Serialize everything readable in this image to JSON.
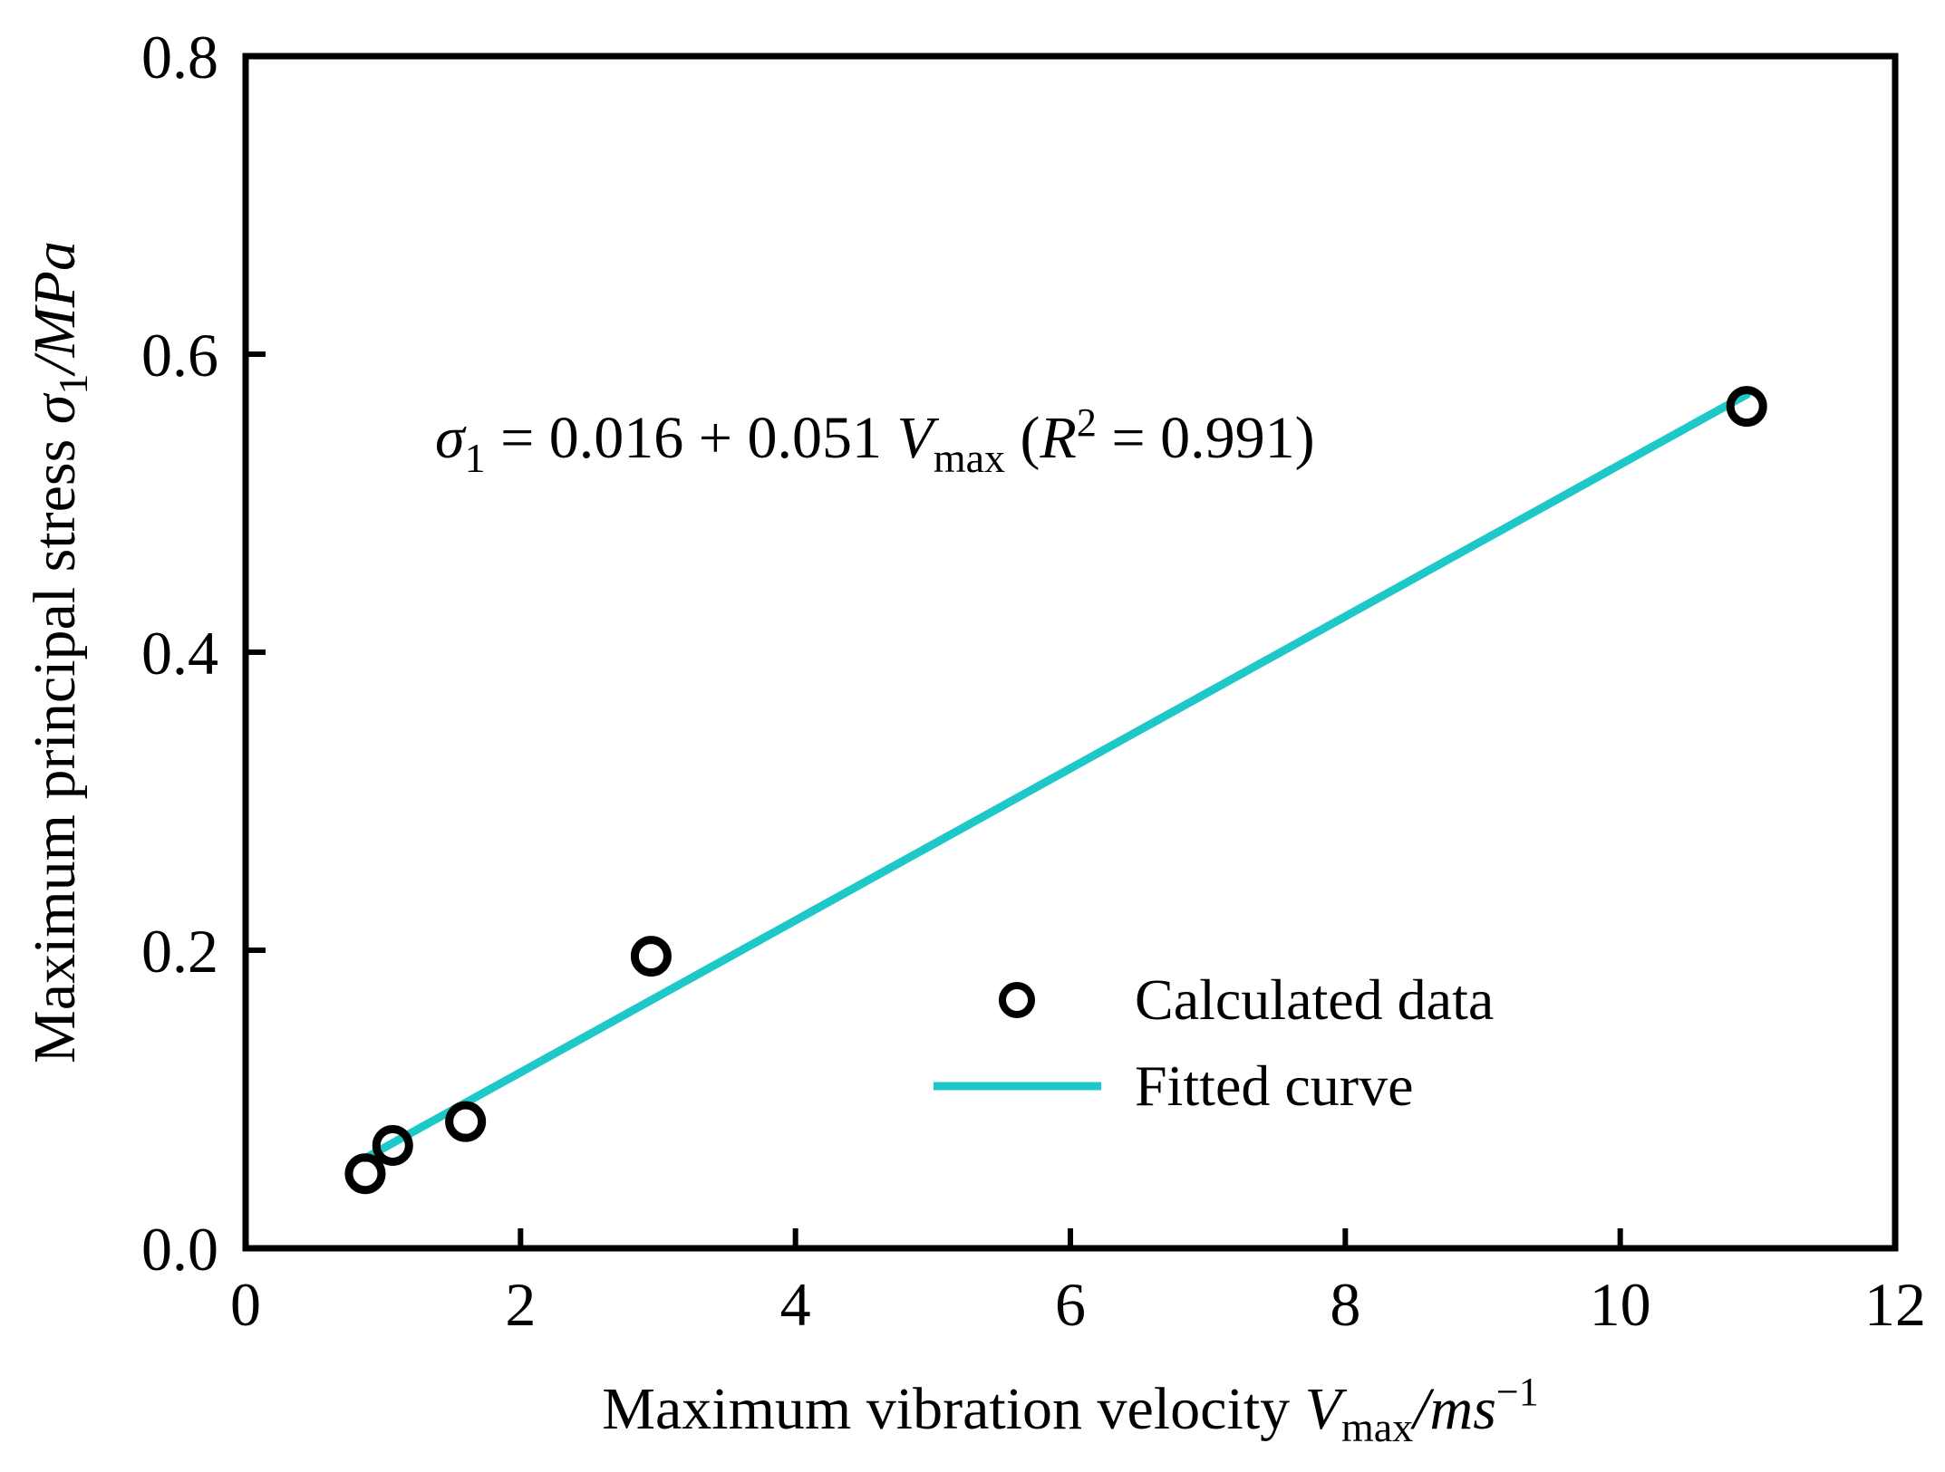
{
  "chart_data": {
    "type": "scatter",
    "xlabel": {
      "main": "Maximum  vibration  velocity  ",
      "var": "V",
      "sub": "max",
      "unit": "/ms",
      "sup": "−1"
    },
    "ylabel": {
      "main": "Maximum  principal stress ",
      "var": "σ",
      "sub": "1",
      "unit": "/MPa"
    },
    "xlim": [
      0,
      12
    ],
    "ylim": [
      0.0,
      0.8
    ],
    "xticks": [
      "0",
      "2",
      "4",
      "6",
      "8",
      "10",
      "12"
    ],
    "yticks": [
      "0.0",
      "0.2",
      "0.4",
      "0.6",
      "0.8"
    ],
    "grid": false,
    "legend_position": "lower-right",
    "series": [
      {
        "name": "Calculated data",
        "kind": "scatter",
        "marker": "open-circle",
        "color": "#000000",
        "x": [
          0.87,
          1.07,
          1.6,
          2.95,
          10.92
        ],
        "y": [
          0.05,
          0.069,
          0.085,
          0.196,
          0.565
        ]
      },
      {
        "name": "Fitted curve",
        "kind": "line",
        "color": "#1EC8C8",
        "x": [
          0.87,
          10.92
        ],
        "y": [
          0.0604,
          0.5729
        ]
      }
    ],
    "annotation": {
      "var": "σ",
      "sub": "1",
      "mid": " = 0.016 + 0.051 ",
      "var2": "V",
      "sub2": "max",
      "paren_open": "  (",
      "var3": "R",
      "sup3": "2",
      "tail": " = 0.991)"
    }
  }
}
